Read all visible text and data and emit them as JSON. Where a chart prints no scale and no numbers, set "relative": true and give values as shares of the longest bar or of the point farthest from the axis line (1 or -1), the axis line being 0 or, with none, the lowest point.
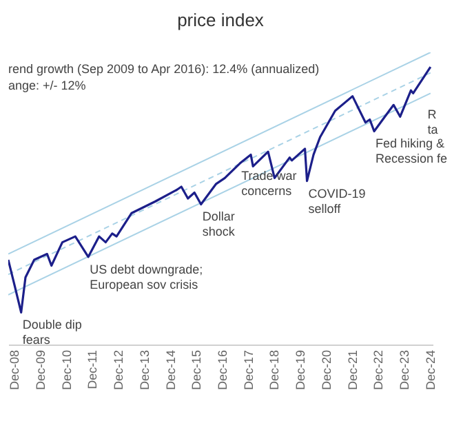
{
  "chart_data": {
    "type": "line",
    "title": "price index",
    "relative": true,
    "grid": false,
    "marker": "none",
    "xlim": [
      "2008-09",
      "2025-01"
    ],
    "xticks": [
      {
        "value": "2008-12",
        "label": "Dec-08"
      },
      {
        "value": "2009-12",
        "label": "Dec-09"
      },
      {
        "value": "2010-12",
        "label": "Dec-10"
      },
      {
        "value": "2011-12",
        "label": "Dec-11"
      },
      {
        "value": "2012-12",
        "label": "Dec-12"
      },
      {
        "value": "2013-12",
        "label": "Dec-13"
      },
      {
        "value": "2014-12",
        "label": "Dec-14"
      },
      {
        "value": "2015-12",
        "label": "Dec-15"
      },
      {
        "value": "2016-12",
        "label": "Dec-16"
      },
      {
        "value": "2017-12",
        "label": "Dec-17"
      },
      {
        "value": "2018-12",
        "label": "Dec-18"
      },
      {
        "value": "2019-12",
        "label": "Dec-19"
      },
      {
        "value": "2020-12",
        "label": "Dec-20"
      },
      {
        "value": "2021-12",
        "label": "Dec-21"
      },
      {
        "value": "2022-12",
        "label": "Dec-22"
      },
      {
        "value": "2023-12",
        "label": "Dec-23"
      },
      {
        "value": "2024-12",
        "label": "Dec-24"
      }
    ],
    "series": [
      {
        "type": "line",
        "color": "#a9d2e6",
        "line_style": "solid",
        "x": [
          "2008-09",
          "2024-12"
        ],
        "values": [
          0.31,
          1
        ]
      },
      {
        "type": "line",
        "color": "#a9d2e6",
        "line_style": "dashed",
        "x": [
          "2008-09",
          "2024-12"
        ],
        "values": [
          0.24,
          0.93
        ]
      },
      {
        "type": "line",
        "color": "#a9d2e6",
        "line_style": "solid",
        "x": [
          "2008-09",
          "2024-12"
        ],
        "values": [
          0.17,
          0.86
        ]
      },
      {
        "type": "line",
        "color": "#1c1f8a",
        "line_style": "solid",
        "x": [
          "2008-09",
          "2008-12",
          "2009-03",
          "2009-05",
          "2009-09",
          "2010-03",
          "2010-05",
          "2010-10",
          "2011-04",
          "2011-10",
          "2012-03",
          "2012-06",
          "2012-09",
          "2012-11",
          "2013-06",
          "2014-05",
          "2015-03",
          "2015-05",
          "2015-08",
          "2015-11",
          "2016-02",
          "2016-09",
          "2017-01",
          "2017-08",
          "2018-01",
          "2018-02",
          "2018-09",
          "2018-12",
          "2019-07",
          "2019-08",
          "2020-02",
          "2020-03",
          "2020-06",
          "2020-09",
          "2021-04",
          "2021-12",
          "2022-06",
          "2022-08",
          "2022-10",
          "2023-03",
          "2023-07",
          "2023-10",
          "2024-03",
          "2024-04",
          "2024-12"
        ],
        "values": [
          0.29,
          0.2,
          0.11,
          0.23,
          0.29,
          0.31,
          0.27,
          0.35,
          0.37,
          0.3,
          0.37,
          0.35,
          0.38,
          0.37,
          0.45,
          0.49,
          0.53,
          0.54,
          0.5,
          0.52,
          0.48,
          0.55,
          0.57,
          0.62,
          0.65,
          0.61,
          0.66,
          0.57,
          0.64,
          0.63,
          0.67,
          0.56,
          0.65,
          0.71,
          0.8,
          0.85,
          0.76,
          0.77,
          0.73,
          0.78,
          0.82,
          0.78,
          0.87,
          0.86,
          0.95
        ]
      }
    ],
    "annotations": [
      "rend growth (Sep 2009 to Apr 2016): 12.4% (annualized)",
      "ange: +/- 12%",
      {
        "text": "Double dip\nfears",
        "x": "2009-03",
        "y": 0.11
      },
      {
        "text": "US debt downgrade;\nEuropean sov crisis",
        "x": "2011-10",
        "y": 0.3
      },
      {
        "text": "Dollar\nshock",
        "x": "2016-02",
        "y": 0.48
      },
      {
        "text": "Trade war\nconcerns",
        "x": "2017-08",
        "y": 0.62
      },
      {
        "text": "COVID-19\nselloff",
        "x": "2020-03",
        "y": 0.56
      },
      {
        "text": "Fed hiking &\nRecession fe",
        "x": "2022-10",
        "y": 0.73
      },
      {
        "text": "R\nta",
        "x": "2024-10",
        "y": 0.83
      }
    ]
  }
}
